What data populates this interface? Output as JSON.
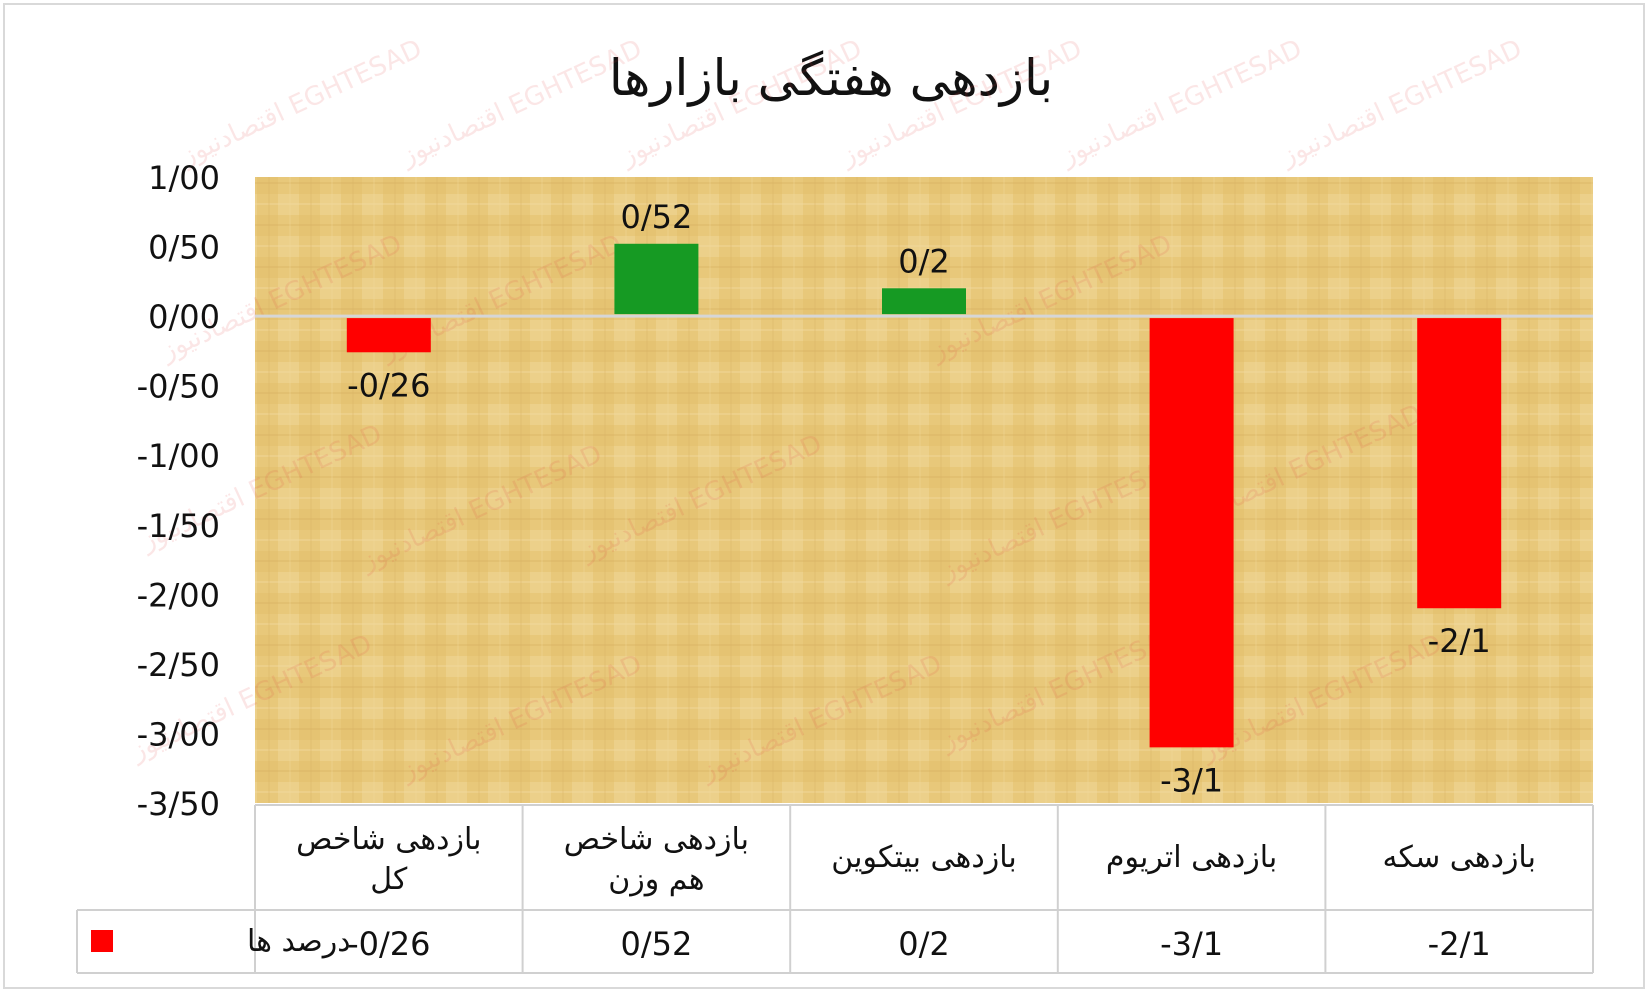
{
  "chart_data": {
    "type": "bar",
    "title": "بازدهی هفتگی بازارها",
    "categories": [
      [
        "بازدهی شاخص",
        "کل"
      ],
      [
        "بازدهی  شاخص",
        "هم وزن"
      ],
      [
        "بازدهی بیتکوین"
      ],
      [
        "بازدهی اتریوم"
      ],
      [
        "بازدهی سکه"
      ]
    ],
    "series": [
      {
        "name": "درصد ها",
        "values": [
          -0.26,
          0.52,
          0.2,
          -3.1,
          -2.1
        ]
      }
    ],
    "value_labels": [
      "-0/26",
      "0/52",
      "0/2",
      "-3/1",
      "-2/1"
    ],
    "ylim": [
      -3.5,
      1.0
    ],
    "yticks": [
      1.0,
      0.5,
      0.0,
      -0.5,
      -1.0,
      -1.5,
      -2.0,
      -2.5,
      -3.0,
      -3.5
    ],
    "ytick_labels": [
      "1/00",
      "0/50",
      "0/00",
      "-0/50",
      "-1/00",
      "-1/50",
      "-2/00",
      "-2/50",
      "-3/00",
      "-3/50"
    ],
    "colors": {
      "positive": "#169a23",
      "negative": "#ff0000",
      "legend_swatch": "#ff0000",
      "zero_line": "#d6d6d6",
      "plot_bg": "#e6c476"
    },
    "legend": "data-table",
    "data_table": true,
    "watermark": "اقتصادنیوز EGHTESAD"
  }
}
